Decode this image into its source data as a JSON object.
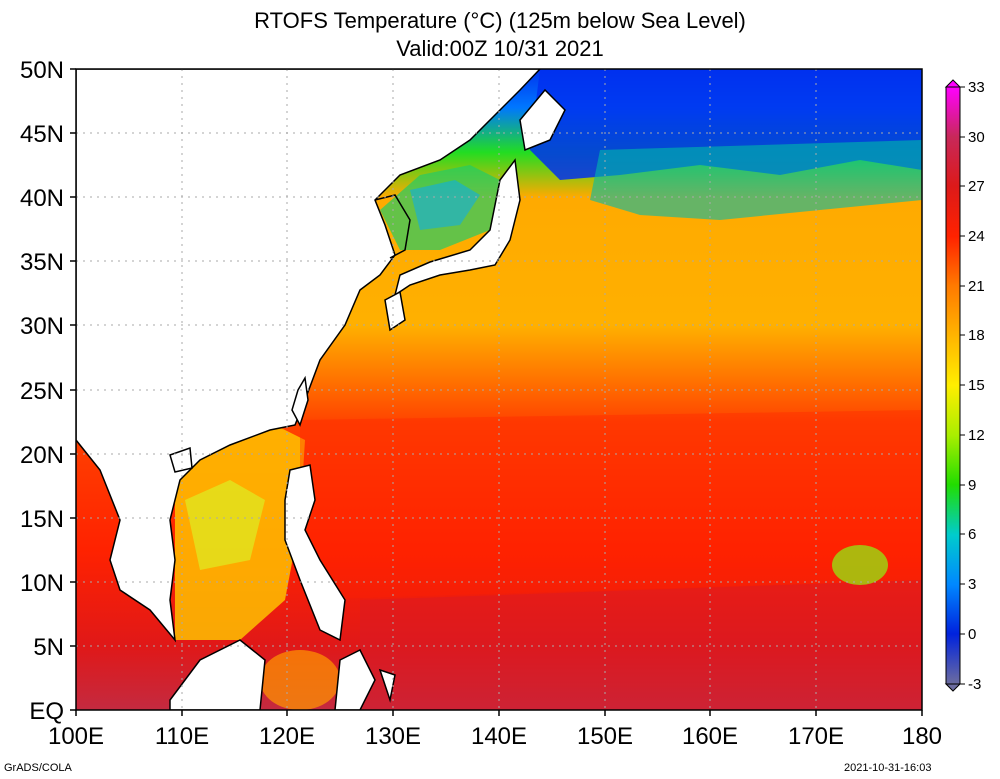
{
  "title": {
    "line1": "RTOFS Temperature (°C) (125m below Sea Level)",
    "line2": "Valid:00Z 10/31 2021"
  },
  "map": {
    "lat_ticks": [
      "EQ",
      "5N",
      "10N",
      "15N",
      "20N",
      "25N",
      "30N",
      "35N",
      "40N",
      "45N",
      "50N"
    ],
    "lon_ticks": [
      "100E",
      "110E",
      "120E",
      "130E",
      "140E",
      "150E",
      "160E",
      "170E",
      "180"
    ],
    "lat_range": [
      0,
      50
    ],
    "lon_range": [
      100,
      180
    ],
    "gridlines": "dotted",
    "land_color": "#ffffff",
    "coast_color": "#000000"
  },
  "colorbar": {
    "labels": [
      "33",
      "30",
      "27",
      "24",
      "21",
      "18",
      "15",
      "12",
      "9",
      "6",
      "3",
      "0",
      "-3"
    ],
    "stops": [
      {
        "value": 33,
        "color": "#ff00ff"
      },
      {
        "value": 30,
        "color": "#c8285a"
      },
      {
        "value": 27,
        "color": "#dc1a1a"
      },
      {
        "value": 24,
        "color": "#ff2200"
      },
      {
        "value": 21,
        "color": "#ff7a00"
      },
      {
        "value": 18,
        "color": "#ffb400"
      },
      {
        "value": 15,
        "color": "#ffee00"
      },
      {
        "value": 12,
        "color": "#aaee00"
      },
      {
        "value": 9,
        "color": "#22dd00"
      },
      {
        "value": 6,
        "color": "#00cccc"
      },
      {
        "value": 3,
        "color": "#0088ff"
      },
      {
        "value": 0,
        "color": "#0022dd"
      },
      {
        "value": -3,
        "color": "#6c6ca0"
      }
    ]
  },
  "credits": {
    "left": "GrADS/COLA",
    "right": "2021-10-31-16:03"
  }
}
